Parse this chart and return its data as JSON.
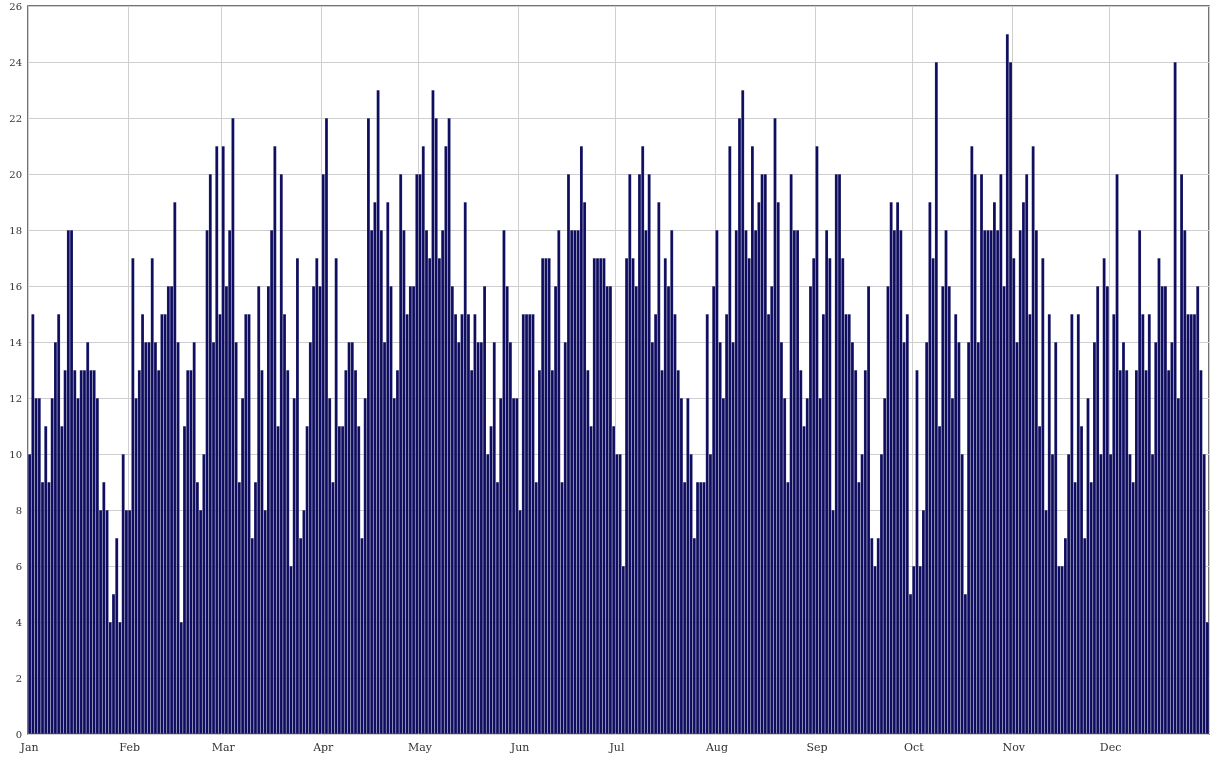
{
  "chart_data": {
    "type": "bar",
    "categories": [
      "Jan",
      null,
      null,
      null,
      null,
      null,
      null,
      null,
      null,
      null,
      null,
      null,
      null,
      null,
      null,
      null,
      null,
      null,
      null,
      null,
      null,
      null,
      null,
      null,
      null,
      null,
      null,
      null,
      null,
      null,
      null,
      "Feb",
      null,
      null,
      null,
      null,
      null,
      null,
      null,
      null,
      null,
      null,
      null,
      null,
      null,
      null,
      null,
      null,
      null,
      null,
      null,
      null,
      null,
      null,
      null,
      null,
      null,
      null,
      null,
      null,
      "Mar",
      null,
      null,
      null,
      null,
      null,
      null,
      null,
      null,
      null,
      null,
      null,
      null,
      null,
      null,
      null,
      null,
      null,
      null,
      null,
      null,
      null,
      null,
      null,
      null,
      null,
      null,
      null,
      null,
      null,
      null,
      "Apr",
      null,
      null,
      null,
      null,
      null,
      null,
      null,
      null,
      null,
      null,
      null,
      null,
      null,
      null,
      null,
      null,
      null,
      null,
      null,
      null,
      null,
      null,
      null,
      null,
      null,
      null,
      null,
      null,
      null,
      "May",
      null,
      null,
      null,
      null,
      null,
      null,
      null,
      null,
      null,
      null,
      null,
      null,
      null,
      null,
      null,
      null,
      null,
      null,
      null,
      null,
      null,
      null,
      null,
      null,
      null,
      null,
      null,
      null,
      null,
      null,
      "Jun",
      null,
      null,
      null,
      null,
      null,
      null,
      null,
      null,
      null,
      null,
      null,
      null,
      null,
      null,
      null,
      null,
      null,
      null,
      null,
      null,
      null,
      null,
      null,
      null,
      null,
      null,
      null,
      null,
      null,
      "Jul",
      null,
      null,
      null,
      null,
      null,
      null,
      null,
      null,
      null,
      null,
      null,
      null,
      null,
      null,
      null,
      null,
      null,
      null,
      null,
      null,
      null,
      null,
      null,
      null,
      null,
      null,
      null,
      null,
      null,
      null,
      "Aug",
      null,
      null,
      null,
      null,
      null,
      null,
      null,
      null,
      null,
      null,
      null,
      null,
      null,
      null,
      null,
      null,
      null,
      null,
      null,
      null,
      null,
      null,
      null,
      null,
      null,
      null,
      null,
      null,
      null,
      null,
      "Sep",
      null,
      null,
      null,
      null,
      null,
      null,
      null,
      null,
      null,
      null,
      null,
      null,
      null,
      null,
      null,
      null,
      null,
      null,
      null,
      null,
      null,
      null,
      null,
      null,
      null,
      null,
      null,
      null,
      null,
      "Oct",
      null,
      null,
      null,
      null,
      null,
      null,
      null,
      null,
      null,
      null,
      null,
      null,
      null,
      null,
      null,
      null,
      null,
      null,
      null,
      null,
      null,
      null,
      null,
      null,
      null,
      null,
      null,
      null,
      null,
      null,
      "Nov",
      null,
      null,
      null,
      null,
      null,
      null,
      null,
      null,
      null,
      null,
      null,
      null,
      null,
      null,
      null,
      null,
      null,
      null,
      null,
      null,
      null,
      null,
      null,
      null,
      null,
      null,
      null,
      null,
      null,
      "Dec",
      null,
      null,
      null,
      null,
      null,
      null,
      null,
      null,
      null,
      null,
      null,
      null,
      null,
      null,
      null,
      null,
      null,
      null,
      null,
      null,
      null,
      null,
      null,
      null,
      null,
      null,
      null,
      null,
      null,
      null
    ],
    "values": [
      10,
      15,
      12,
      12,
      9,
      11,
      9,
      12,
      14,
      15,
      11,
      13,
      18,
      18,
      13,
      12,
      13,
      13,
      14,
      13,
      13,
      12,
      8,
      9,
      8,
      4,
      5,
      7,
      4,
      10,
      8,
      8,
      17,
      12,
      13,
      15,
      14,
      14,
      17,
      14,
      13,
      15,
      15,
      16,
      16,
      19,
      14,
      4,
      11,
      13,
      13,
      14,
      9,
      8,
      10,
      18,
      20,
      14,
      21,
      15,
      21,
      16,
      18,
      22,
      14,
      9,
      12,
      15,
      15,
      7,
      9,
      16,
      13,
      8,
      16,
      18,
      21,
      11,
      20,
      15,
      13,
      6,
      12,
      17,
      7,
      8,
      11,
      14,
      16,
      17,
      16,
      20,
      22,
      12,
      9,
      17,
      11,
      11,
      13,
      14,
      14,
      13,
      11,
      7,
      12,
      22,
      18,
      19,
      23,
      18,
      14,
      19,
      16,
      12,
      13,
      20,
      18,
      15,
      16,
      16,
      20,
      20,
      21,
      18,
      17,
      23,
      22,
      17,
      18,
      21,
      22,
      16,
      15,
      14,
      15,
      19,
      15,
      13,
      15,
      14,
      14,
      16,
      10,
      11,
      14,
      9,
      12,
      18,
      16,
      14,
      12,
      12,
      8,
      15,
      15,
      15,
      15,
      9,
      13,
      17,
      17,
      17,
      13,
      16,
      18,
      9,
      14,
      20,
      18,
      18,
      18,
      21,
      19,
      13,
      11,
      17,
      17,
      17,
      17,
      16,
      16,
      11,
      10,
      10,
      6,
      17,
      20,
      17,
      16,
      20,
      21,
      18,
      20,
      14,
      15,
      19,
      13,
      17,
      16,
      18,
      15,
      13,
      12,
      9,
      12,
      10,
      7,
      9,
      9,
      9,
      15,
      10,
      16,
      18,
      14,
      12,
      15,
      21,
      14,
      18,
      22,
      23,
      18,
      17,
      21,
      18,
      19,
      20,
      20,
      15,
      16,
      22,
      19,
      14,
      12,
      9,
      20,
      18,
      18,
      13,
      11,
      12,
      16,
      17,
      21,
      12,
      15,
      18,
      17,
      8,
      20,
      20,
      17,
      15,
      15,
      14,
      13,
      9,
      10,
      13,
      16,
      7,
      6,
      7,
      10,
      12,
      16,
      19,
      18,
      19,
      18,
      14,
      15,
      5,
      6,
      13,
      6,
      8,
      14,
      19,
      17,
      24,
      11,
      16,
      18,
      16,
      12,
      15,
      14,
      10,
      5,
      14,
      21,
      20,
      14,
      20,
      18,
      18,
      18,
      19,
      18,
      20,
      16,
      25,
      24,
      17,
      14,
      18,
      19,
      20,
      15,
      21,
      18,
      11,
      17,
      8,
      15,
      10,
      14,
      6,
      6,
      7,
      10,
      15,
      9,
      15,
      11,
      7,
      12,
      9,
      14,
      16,
      10,
      17,
      16,
      10,
      15,
      20,
      13,
      14,
      13,
      10,
      9,
      13,
      18,
      15,
      13,
      15,
      10,
      14,
      17,
      16,
      16,
      13,
      14,
      24,
      12,
      20,
      18,
      15,
      15,
      15,
      16,
      13,
      10,
      4
    ],
    "color": "#0e0c5e",
    "ylim": [
      0,
      26
    ],
    "yticks": [
      0,
      2,
      4,
      6,
      8,
      10,
      12,
      14,
      16,
      18,
      20,
      22,
      24,
      26
    ],
    "grid": true
  }
}
